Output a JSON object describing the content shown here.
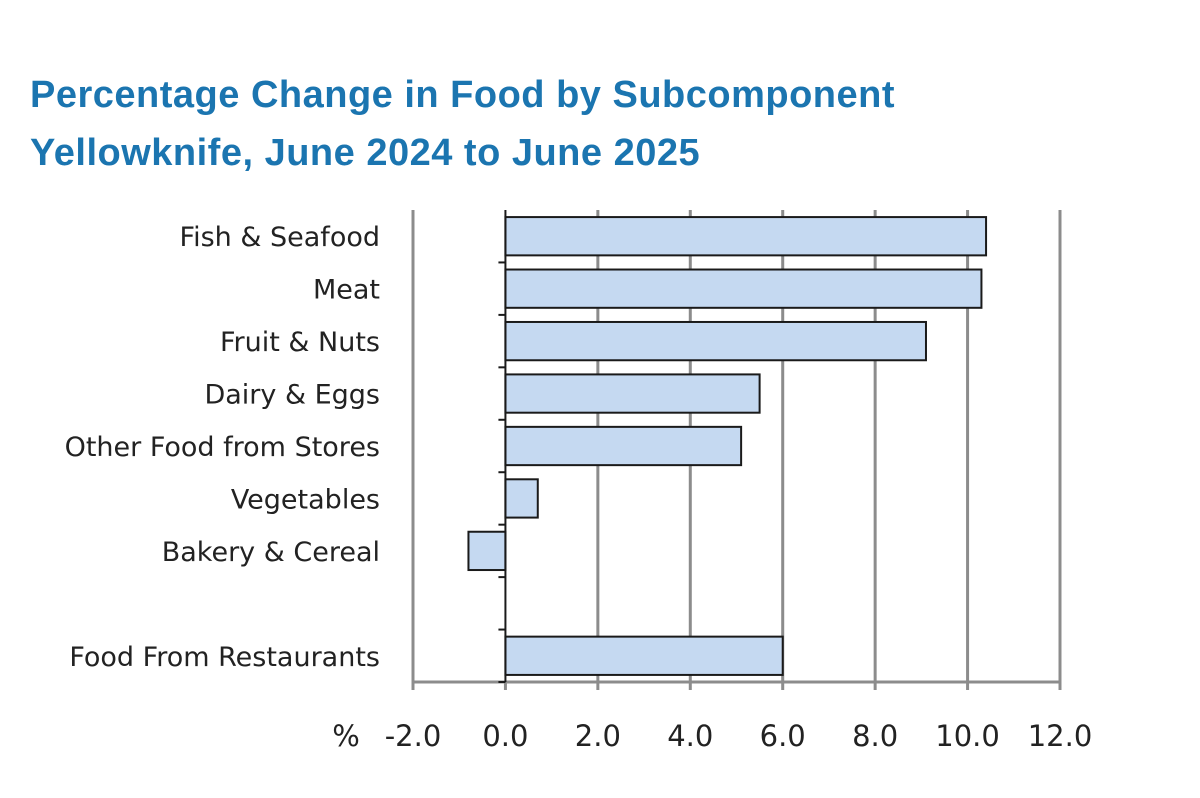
{
  "chart_data": {
    "type": "bar",
    "orientation": "horizontal",
    "title": "Percentage Change in Food by Subcomponent",
    "subtitle": "Yellowknife, June 2024 to June 2025",
    "categories": [
      "Fish & Seafood",
      "Meat",
      "Fruit & Nuts",
      "Dairy & Eggs",
      "Other Food from Stores",
      "Vegetables",
      "Bakery & Cereal",
      "",
      "Food From Restaurants"
    ],
    "values": [
      10.4,
      10.3,
      9.1,
      5.5,
      5.1,
      0.7,
      -0.8,
      null,
      6.0
    ],
    "xlim": [
      -2.0,
      12.0
    ],
    "xticks": [
      "-2.0",
      "0.0",
      "2.0",
      "4.0",
      "6.0",
      "8.0",
      "10.0",
      "12.0"
    ],
    "xlabel": "%",
    "grid": "vertical",
    "legend": "none",
    "colors": {
      "bar_fill": "#c5d9f1",
      "bar_stroke": "#1a1a1a",
      "grid": "#8c8c8c",
      "title": "#1b75b0"
    }
  }
}
